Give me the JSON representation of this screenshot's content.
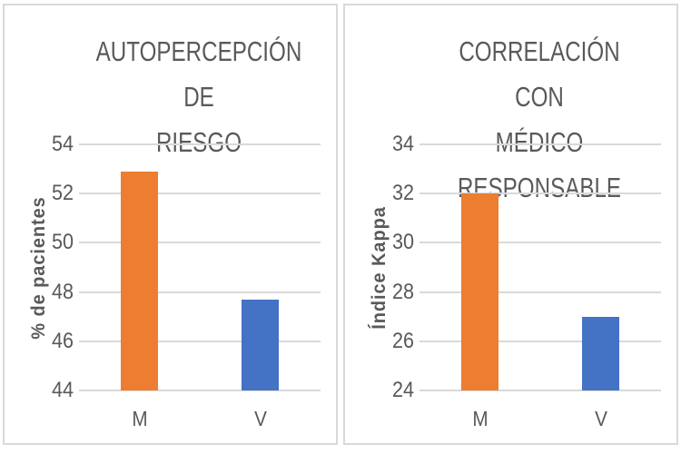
{
  "window": {
    "background": "#FFFFFF"
  },
  "colors": {
    "bar_orange": "#ED7D31",
    "bar_blue": "#4472C4",
    "gridline": "#D9D9D9",
    "text": "#595959",
    "panel_border": "#D9D9D9"
  },
  "chart_data": [
    {
      "type": "bar",
      "title": "AUTOPERCEPCIÓN DE RIESGO",
      "title_lines": [
        "AUTOPERCEPCIÓN DE",
        "RIESGO"
      ],
      "ylabel": "% de pacientes",
      "xlabel": "",
      "categories": [
        "M",
        "V"
      ],
      "values": [
        52.9,
        47.7
      ],
      "bar_colors": [
        "#ED7D31",
        "#4472C4"
      ],
      "ylim": [
        44,
        54
      ],
      "yticks": [
        44,
        46,
        48,
        50,
        52,
        54
      ],
      "grid": "horizontal",
      "legend_position": "none"
    },
    {
      "type": "bar",
      "title": "CORRELACIÓN CON MÉDICO RESPONSABLE",
      "title_lines": [
        "CORRELACIÓN CON",
        "MÉDICO RESPONSABLE"
      ],
      "ylabel": "Índice Kappa",
      "xlabel": "",
      "categories": [
        "M",
        "V"
      ],
      "values": [
        32,
        27
      ],
      "bar_colors": [
        "#ED7D31",
        "#4472C4"
      ],
      "ylim": [
        24,
        34
      ],
      "yticks": [
        24,
        26,
        28,
        30,
        32,
        34
      ],
      "grid": "horizontal",
      "legend_position": "none"
    }
  ]
}
